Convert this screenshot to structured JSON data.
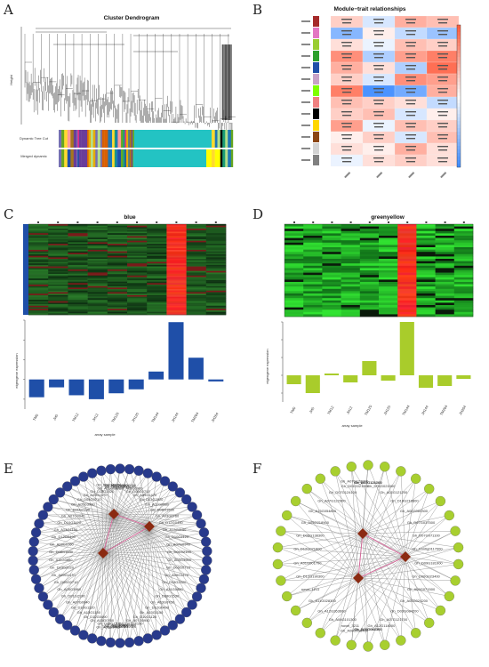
{
  "panels": {
    "a": {
      "letter": "A",
      "title": "Cluster Dendrogram",
      "ylabel": "Height",
      "row1": "Dynamic Tree Cut",
      "row2": "Merged dynamic"
    },
    "b": {
      "letter": "B",
      "title": "Module−trait relationships"
    },
    "c": {
      "letter": "C",
      "title": "blue",
      "ylabel": "eigengene expression",
      "xlabel": "array sample"
    },
    "d": {
      "letter": "D",
      "title": "greenyellow",
      "ylabel": "eigengene expression",
      "xlabel": "array sample"
    },
    "e": {
      "letter": "E"
    },
    "f": {
      "letter": "F"
    }
  },
  "colors": {
    "blue_bar": "#1f4fa8",
    "greenyellow_bar": "#a9cc2b",
    "turquoise": "#23c3c3",
    "hub": "#8b2a12",
    "node_blue": "#283a8c",
    "node_green": "#a8cf2f"
  },
  "chart_data": [
    {
      "type": "bar",
      "panel": "C",
      "title": "blue",
      "xlabel": "array sample",
      "ylabel": "eigengene expression",
      "categories": [
        "TM0",
        "JH0",
        "TM12",
        "JH12",
        "TM120",
        "JH120",
        "TM144",
        "JH144",
        "TM264",
        "JH264"
      ],
      "values": [
        -0.9,
        -0.4,
        -0.8,
        -1.0,
        -0.7,
        -0.5,
        0.4,
        2.9,
        1.1,
        -0.1
      ],
      "ylim": [
        -1.5,
        3.0
      ]
    },
    {
      "type": "bar",
      "panel": "D",
      "title": "greenyellow",
      "xlabel": "array sample",
      "ylabel": "eigengene expression",
      "categories": [
        "TM0",
        "JH0",
        "TM12",
        "JH12",
        "TM120",
        "JH120",
        "TM144",
        "JH144",
        "TM264",
        "JH264"
      ],
      "values": [
        -0.5,
        -1.0,
        0.1,
        -0.4,
        0.8,
        -0.3,
        3.0,
        -0.7,
        -0.6,
        -0.2
      ],
      "ylim": [
        -1.5,
        3.0
      ]
    }
  ],
  "network_e": {
    "hubs": 3,
    "node_count": 58,
    "labels": [
      "Gh_D10G1120",
      "Gh_A07G0940",
      "Gh_D01G2190",
      "Gh_A05G3960",
      "Gh_D05G0710",
      "Gh_A09G1470",
      "Gh_D13G2020",
      "Gh_A11G0880",
      "Gh_D08G1530",
      "Gh_A03G0760",
      "Gh_D12G0490",
      "Gh_A13G1150"
    ]
  },
  "network_f": {
    "hubs": 3,
    "labels": [
      "Gh_A07G122900",
      "Gh_D07G124100",
      "Gh_D01G021900",
      "Gh_A01G121200",
      "Gh_D10G218800",
      "Gh_A06G069300",
      "Gh_D07G037500",
      "Gh_D07G071100",
      "Gh_Contig0117000",
      "Gh_D09G181900",
      "Gh_D06G023400",
      "Gh_A09G071500",
      "Gh_A05G024200",
      "Gh_D03G084200",
      "Gh_A07G121700",
      "Gh_A12G118000",
      "Gh_D01G063300",
      "Gh_A08G018400",
      "Gh_A10G064300",
      "novel_3211",
      "Gh_A06G101300",
      "Gh_A12G263600",
      "Gh_A11G028300",
      "novel_1211",
      "Gh_D12G190300",
      "Gh_A01G001700",
      "Gh_D12G071600",
      "Gh_D06G138300",
      "Gh_A05G218900",
      "Gh_A13G054800"
    ]
  }
}
